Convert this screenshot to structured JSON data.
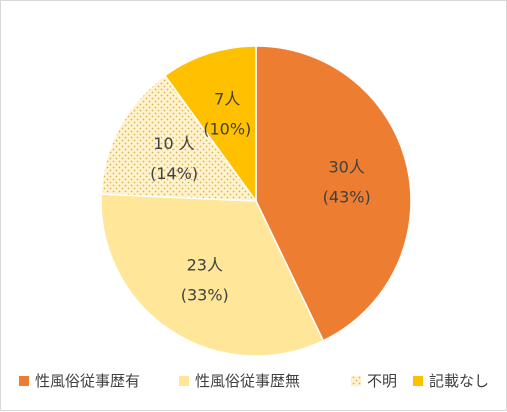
{
  "chart_data": {
    "type": "pie",
    "title": "",
    "slices": [
      {
        "label": "性風俗従事歴有",
        "value": 30,
        "value_text": "30人",
        "percent_text": "(43%)",
        "color": "#ed7d31",
        "pattern": "none"
      },
      {
        "label": "性風俗従事歴無",
        "value": 23,
        "value_text": "23人",
        "percent_text": "(33%)",
        "color": "#ffe699",
        "pattern": "none"
      },
      {
        "label": "不明",
        "value": 10,
        "value_text": "10 人",
        "percent_text": "(14%)",
        "color": "#fff2cc",
        "pattern": "dots"
      },
      {
        "label": "記載なし",
        "value": 7,
        "value_text": "7人",
        "percent_text": "(10%)",
        "color": "#ffc000",
        "pattern": "none"
      }
    ],
    "legend_position": "bottom"
  }
}
